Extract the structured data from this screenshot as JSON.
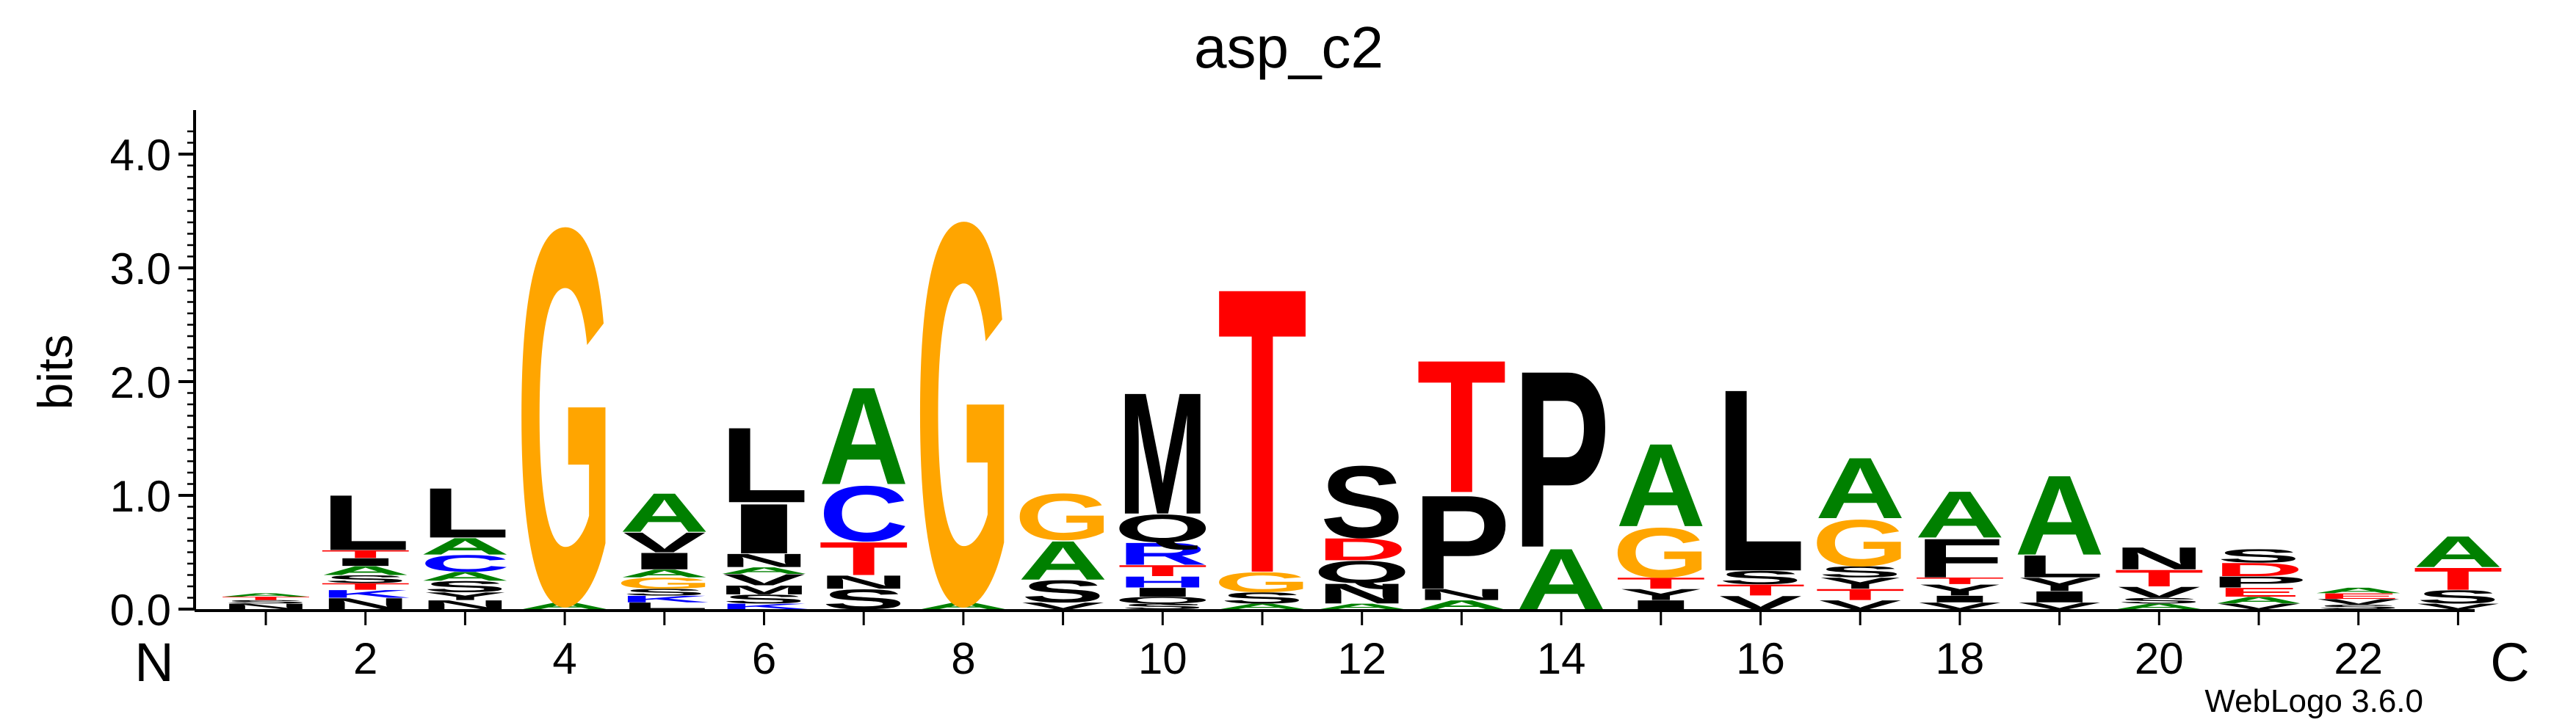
{
  "chart_data": {
    "type": "sequence-logo",
    "title": "asp_c2",
    "ylabel": "bits",
    "ylim": [
      0,
      4.3
    ],
    "yticks": [
      "0.0",
      "1.0",
      "2.0",
      "3.0",
      "4.0"
    ],
    "xticks": [
      "2",
      "4",
      "6",
      "8",
      "10",
      "12",
      "14",
      "16",
      "18",
      "20",
      "22"
    ],
    "n_label": "N",
    "c_label": "C",
    "footer": "WebLogo 3.6.0",
    "colors": {
      "hydrophobic": "#000000",
      "polar_green": "#008000",
      "glycine": "#FFA500",
      "acidic": "#FF0000",
      "basic": "#0000FF"
    },
    "positions": [
      {
        "pos": 1,
        "stack": [
          [
            "N",
            0.05
          ],
          [
            "S",
            0.03
          ],
          [
            "T",
            0.03
          ],
          [
            "A",
            0.03
          ]
        ]
      },
      {
        "pos": 2,
        "stack": [
          [
            "N",
            0.1
          ],
          [
            "K",
            0.07
          ],
          [
            "T",
            0.06
          ],
          [
            "S",
            0.07
          ],
          [
            "A",
            0.08
          ],
          [
            "I",
            0.07
          ],
          [
            "T",
            0.07
          ],
          [
            "L",
            0.5
          ]
        ]
      },
      {
        "pos": 3,
        "stack": [
          [
            "N",
            0.08
          ],
          [
            "Y",
            0.07
          ],
          [
            "S",
            0.1
          ],
          [
            "A",
            0.08
          ],
          [
            "C",
            0.15
          ],
          [
            "A",
            0.15
          ],
          [
            "L",
            0.45
          ]
        ]
      },
      {
        "pos": 4,
        "stack": [
          [
            "A",
            0.06
          ],
          [
            "G",
            3.4
          ]
        ]
      },
      {
        "pos": 5,
        "stack": [
          [
            "L",
            0.06
          ],
          [
            "K",
            0.06
          ],
          [
            "S",
            0.06
          ],
          [
            "G",
            0.1
          ],
          [
            "A",
            0.07
          ],
          [
            "I",
            0.15
          ],
          [
            "V",
            0.18
          ],
          [
            "A",
            0.35
          ]
        ]
      },
      {
        "pos": 6,
        "stack": [
          [
            "K",
            0.05
          ],
          [
            "S",
            0.08
          ],
          [
            "M",
            0.08
          ],
          [
            "V",
            0.1
          ],
          [
            "A",
            0.06
          ],
          [
            "N",
            0.12
          ],
          [
            "I",
            0.45
          ],
          [
            "L",
            0.68
          ]
        ]
      },
      {
        "pos": 7,
        "stack": [
          [
            "S",
            0.18
          ],
          [
            "N",
            0.12
          ],
          [
            "T",
            0.3
          ],
          [
            "C",
            0.5
          ],
          [
            "A",
            0.88
          ]
        ]
      },
      {
        "pos": 8,
        "stack": [
          [
            "A",
            0.06
          ],
          [
            "G",
            3.45
          ]
        ]
      },
      {
        "pos": 9,
        "stack": [
          [
            "V",
            0.06
          ],
          [
            "S",
            0.2
          ],
          [
            "A",
            0.35
          ],
          [
            "G",
            0.42
          ]
        ]
      },
      {
        "pos": 10,
        "stack": [
          [
            "S",
            0.05
          ],
          [
            "Q",
            0.06
          ],
          [
            "I",
            0.08
          ],
          [
            "H",
            0.1
          ],
          [
            "T",
            0.1
          ],
          [
            "R",
            0.2
          ],
          [
            "Q",
            0.25
          ],
          [
            "M",
            1.1
          ]
        ]
      },
      {
        "pos": 11,
        "stack": [
          [
            "A",
            0.05
          ],
          [
            "S",
            0.1
          ],
          [
            "G",
            0.18
          ],
          [
            "T",
            2.58
          ]
        ]
      },
      {
        "pos": 12,
        "stack": [
          [
            "A",
            0.05
          ],
          [
            "N",
            0.18
          ],
          [
            "Q",
            0.2
          ],
          [
            "D",
            0.2
          ],
          [
            "S",
            0.65
          ]
        ]
      },
      {
        "pos": 13,
        "stack": [
          [
            "A",
            0.08
          ],
          [
            "N",
            0.1
          ],
          [
            "P",
            0.85
          ],
          [
            "T",
            1.2
          ]
        ]
      },
      {
        "pos": 14,
        "stack": [
          [
            "A",
            0.55
          ],
          [
            "P",
            1.6
          ]
        ]
      },
      {
        "pos": 15,
        "stack": [
          [
            "I",
            0.08
          ],
          [
            "Y",
            0.1
          ],
          [
            "T",
            0.1
          ],
          [
            "G",
            0.45
          ],
          [
            "A",
            0.75
          ]
        ]
      },
      {
        "pos": 16,
        "stack": [
          [
            "V",
            0.12
          ],
          [
            "T",
            0.1
          ],
          [
            "S",
            0.12
          ],
          [
            "L",
            1.65
          ]
        ]
      },
      {
        "pos": 17,
        "stack": [
          [
            "V",
            0.08
          ],
          [
            "T",
            0.1
          ],
          [
            "Y",
            0.1
          ],
          [
            "S",
            0.1
          ],
          [
            "G",
            0.42
          ],
          [
            "A",
            0.55
          ]
        ]
      },
      {
        "pos": 18,
        "stack": [
          [
            "V",
            0.06
          ],
          [
            "I",
            0.06
          ],
          [
            "Y",
            0.1
          ],
          [
            "T",
            0.06
          ],
          [
            "F",
            0.35
          ],
          [
            "A",
            0.42
          ]
        ]
      },
      {
        "pos": 19,
        "stack": [
          [
            "V",
            0.06
          ],
          [
            "I",
            0.1
          ],
          [
            "Y",
            0.12
          ],
          [
            "L",
            0.2
          ],
          [
            "A",
            0.72
          ]
        ]
      },
      {
        "pos": 20,
        "stack": [
          [
            "A",
            0.05
          ],
          [
            "S",
            0.05
          ],
          [
            "V",
            0.1
          ],
          [
            "T",
            0.15
          ],
          [
            "N",
            0.2
          ]
        ]
      },
      {
        "pos": 21,
        "stack": [
          [
            "V",
            0.05
          ],
          [
            "A",
            0.06
          ],
          [
            "E",
            0.08
          ],
          [
            "P",
            0.1
          ],
          [
            "D",
            0.12
          ],
          [
            "S",
            0.12
          ]
        ]
      },
      {
        "pos": 22,
        "stack": [
          [
            "S",
            0.04
          ],
          [
            "V",
            0.05
          ],
          [
            "E",
            0.05
          ],
          [
            "A",
            0.05
          ]
        ]
      },
      {
        "pos": 23,
        "stack": [
          [
            "V",
            0.05
          ],
          [
            "S",
            0.12
          ],
          [
            "T",
            0.2
          ],
          [
            "A",
            0.28
          ]
        ]
      }
    ]
  }
}
